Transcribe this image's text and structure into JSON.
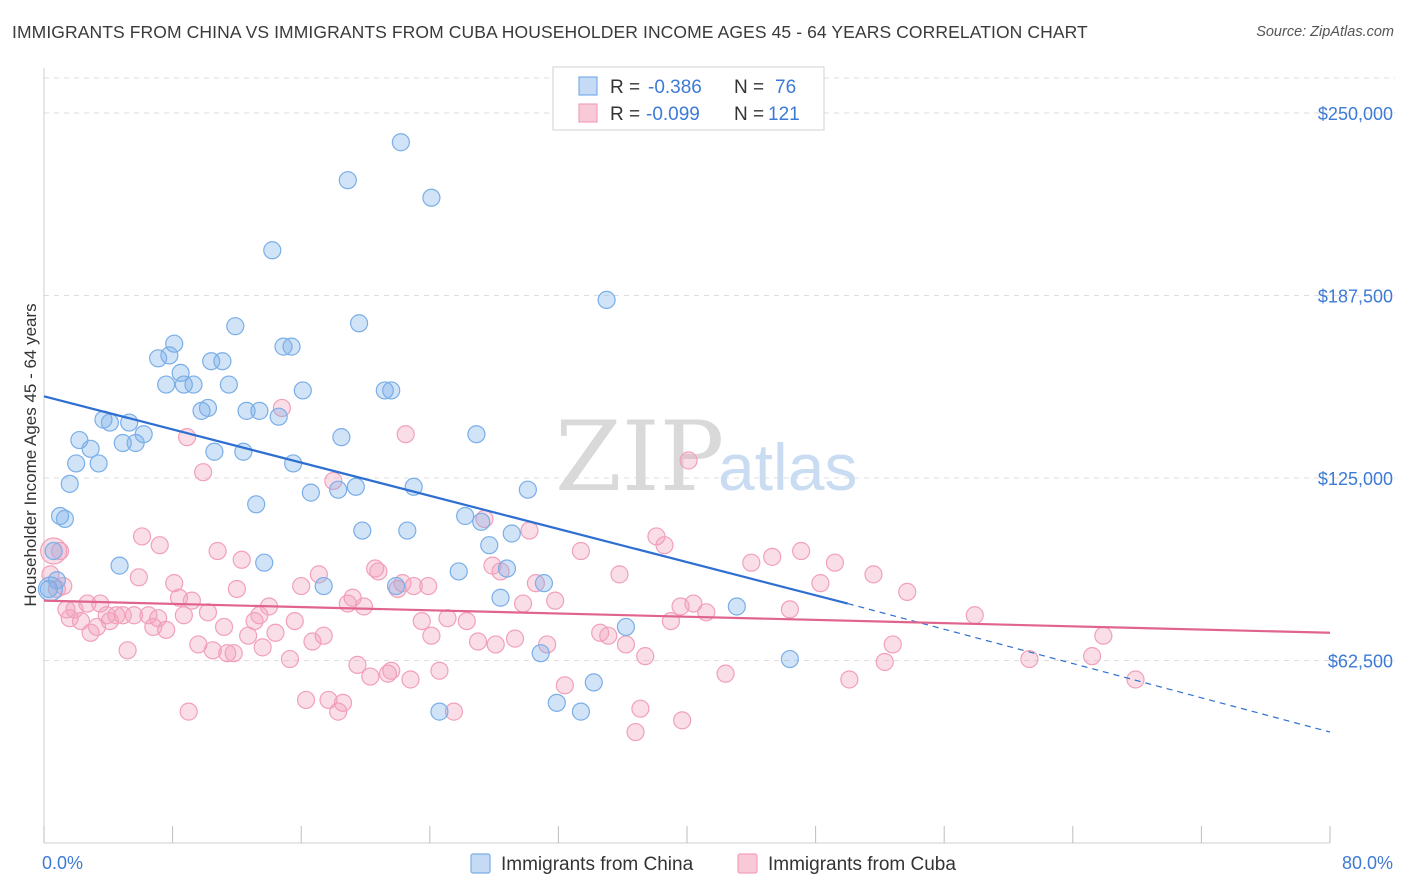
{
  "title": "IMMIGRANTS FROM CHINA VS IMMIGRANTS FROM CUBA HOUSEHOLDER INCOME AGES 45 - 64 YEARS CORRELATION CHART",
  "source": "Source: ZipAtlas.com",
  "watermark": {
    "zip": "ZIP",
    "atlas": "atlas"
  },
  "legend_box": {
    "rows": [
      {
        "r_label": "R =",
        "r_value": "-0.386",
        "n_label": "N =",
        "n_value": "76"
      },
      {
        "r_label": "R =",
        "r_value": "-0.099",
        "n_label": "N =",
        "n_value": "121"
      }
    ]
  },
  "chart_data": {
    "type": "scatter",
    "title": "IMMIGRANTS FROM CHINA VS IMMIGRANTS FROM CUBA HOUSEHOLDER INCOME AGES 45 - 64 YEARS CORRELATION CHART",
    "xlabel": "",
    "ylabel": "Householder Income Ages 45 - 64 years",
    "xlim": [
      0,
      80
    ],
    "ylim": [
      0,
      262000
    ],
    "x_tick_labels": [
      "0.0%",
      "80.0%"
    ],
    "y_ticks": [
      62500,
      125000,
      187500,
      250000
    ],
    "y_tick_labels": [
      "$62,500",
      "$125,000",
      "$187,500",
      "$250,000"
    ],
    "grid": "horizontal dashed",
    "legend_position": "bottom",
    "colors": {
      "china": "#7aaee8",
      "china_line": "#2e6fd1",
      "cuba": "#f2a0ba",
      "cuba_line": "#e0648e"
    },
    "series": [
      {
        "name": "Immigrants from China",
        "R": -0.386,
        "N": 76,
        "trend": {
          "x": [
            0,
            50
          ],
          "y": [
            153000,
            82000
          ],
          "dashed_to": [
            80,
            38000
          ]
        },
        "points": [
          [
            0.3,
            87000
          ],
          [
            0.6,
            100000
          ],
          [
            0.8,
            90000
          ],
          [
            1.0,
            112000
          ],
          [
            1.3,
            111000
          ],
          [
            1.6,
            123000
          ],
          [
            2.0,
            130000
          ],
          [
            2.2,
            138000
          ],
          [
            2.9,
            135000
          ],
          [
            3.4,
            130000
          ],
          [
            3.7,
            145000
          ],
          [
            4.1,
            144000
          ],
          [
            4.7,
            95000
          ],
          [
            4.9,
            137000
          ],
          [
            5.3,
            144000
          ],
          [
            5.7,
            137000
          ],
          [
            6.2,
            140000
          ],
          [
            7.1,
            166000
          ],
          [
            7.6,
            157000
          ],
          [
            7.8,
            167000
          ],
          [
            8.1,
            171000
          ],
          [
            8.5,
            161000
          ],
          [
            8.7,
            157000
          ],
          [
            9.3,
            157000
          ],
          [
            9.8,
            148000
          ],
          [
            10.2,
            149000
          ],
          [
            10.4,
            165000
          ],
          [
            10.6,
            134000
          ],
          [
            11.1,
            165000
          ],
          [
            11.5,
            157000
          ],
          [
            11.9,
            177000
          ],
          [
            12.4,
            134000
          ],
          [
            12.6,
            148000
          ],
          [
            13.2,
            116000
          ],
          [
            13.4,
            148000
          ],
          [
            13.7,
            96000
          ],
          [
            14.2,
            203000
          ],
          [
            14.6,
            146000
          ],
          [
            14.9,
            170000
          ],
          [
            15.5,
            130000
          ],
          [
            15.4,
            170000
          ],
          [
            16.1,
            155000
          ],
          [
            16.6,
            120000
          ],
          [
            17.4,
            88000
          ],
          [
            18.3,
            121000
          ],
          [
            18.5,
            139000
          ],
          [
            18.9,
            227000
          ],
          [
            19.4,
            122000
          ],
          [
            19.6,
            178000
          ],
          [
            19.8,
            107000
          ],
          [
            21.2,
            155000
          ],
          [
            21.6,
            155000
          ],
          [
            21.9,
            88000
          ],
          [
            22.2,
            240000
          ],
          [
            22.6,
            107000
          ],
          [
            23.0,
            122000
          ],
          [
            24.1,
            221000
          ],
          [
            24.6,
            45000
          ],
          [
            25.8,
            93000
          ],
          [
            26.2,
            112000
          ],
          [
            26.9,
            140000
          ],
          [
            27.2,
            110000
          ],
          [
            27.7,
            102000
          ],
          [
            28.4,
            84000
          ],
          [
            28.8,
            94000
          ],
          [
            29.1,
            106000
          ],
          [
            30.1,
            121000
          ],
          [
            30.9,
            65000
          ],
          [
            31.1,
            89000
          ],
          [
            31.9,
            48000
          ],
          [
            33.4,
            45000
          ],
          [
            34.2,
            55000
          ],
          [
            35.0,
            186000
          ],
          [
            36.2,
            74000
          ],
          [
            43.1,
            81000
          ],
          [
            46.4,
            63000
          ]
        ]
      },
      {
        "name": "Immigrants from Cuba",
        "R": -0.099,
        "N": 121,
        "trend": {
          "x": [
            0,
            80
          ],
          "y": [
            83000,
            72000
          ]
        },
        "points": [
          [
            0.4,
            92000
          ],
          [
            0.8,
            87000
          ],
          [
            1.0,
            100000
          ],
          [
            1.2,
            88000
          ],
          [
            1.4,
            80000
          ],
          [
            1.6,
            77000
          ],
          [
            1.9,
            80000
          ],
          [
            2.3,
            76000
          ],
          [
            2.7,
            82000
          ],
          [
            2.9,
            72000
          ],
          [
            3.3,
            74000
          ],
          [
            3.5,
            82000
          ],
          [
            3.9,
            78000
          ],
          [
            4.1,
            76000
          ],
          [
            4.5,
            78000
          ],
          [
            4.9,
            78000
          ],
          [
            5.2,
            66000
          ],
          [
            5.6,
            78000
          ],
          [
            5.9,
            91000
          ],
          [
            6.1,
            105000
          ],
          [
            6.5,
            78000
          ],
          [
            6.8,
            74000
          ],
          [
            7.1,
            77000
          ],
          [
            7.2,
            102000
          ],
          [
            7.6,
            73000
          ],
          [
            8.1,
            89000
          ],
          [
            8.4,
            84000
          ],
          [
            8.7,
            78000
          ],
          [
            8.9,
            139000
          ],
          [
            9.0,
            45000
          ],
          [
            9.2,
            83000
          ],
          [
            9.6,
            68000
          ],
          [
            9.9,
            127000
          ],
          [
            10.2,
            79000
          ],
          [
            10.5,
            66000
          ],
          [
            10.8,
            100000
          ],
          [
            11.2,
            74000
          ],
          [
            11.4,
            65000
          ],
          [
            11.8,
            65000
          ],
          [
            12.0,
            87000
          ],
          [
            12.3,
            97000
          ],
          [
            12.7,
            71000
          ],
          [
            13.1,
            76000
          ],
          [
            13.4,
            78000
          ],
          [
            13.6,
            67000
          ],
          [
            14.0,
            81000
          ],
          [
            14.4,
            72000
          ],
          [
            14.8,
            149000
          ],
          [
            15.3,
            63000
          ],
          [
            15.6,
            76000
          ],
          [
            16.0,
            88000
          ],
          [
            16.3,
            49000
          ],
          [
            16.7,
            69000
          ],
          [
            17.1,
            92000
          ],
          [
            17.4,
            71000
          ],
          [
            17.7,
            49000
          ],
          [
            18.0,
            124000
          ],
          [
            18.3,
            45000
          ],
          [
            18.6,
            48000
          ],
          [
            18.9,
            82000
          ],
          [
            19.2,
            84000
          ],
          [
            19.5,
            61000
          ],
          [
            19.9,
            81000
          ],
          [
            20.3,
            57000
          ],
          [
            20.6,
            94000
          ],
          [
            20.8,
            93000
          ],
          [
            21.4,
            58000
          ],
          [
            21.6,
            59000
          ],
          [
            22.0,
            87000
          ],
          [
            22.3,
            89000
          ],
          [
            22.5,
            140000
          ],
          [
            22.8,
            56000
          ],
          [
            23.0,
            88000
          ],
          [
            23.5,
            76000
          ],
          [
            23.9,
            88000
          ],
          [
            24.1,
            71000
          ],
          [
            24.6,
            59000
          ],
          [
            25.1,
            77000
          ],
          [
            25.5,
            45000
          ],
          [
            26.3,
            76000
          ],
          [
            27.0,
            69000
          ],
          [
            27.4,
            111000
          ],
          [
            27.9,
            95000
          ],
          [
            28.1,
            68000
          ],
          [
            28.4,
            93000
          ],
          [
            29.3,
            70000
          ],
          [
            29.8,
            82000
          ],
          [
            30.2,
            107000
          ],
          [
            30.6,
            89000
          ],
          [
            31.3,
            68000
          ],
          [
            31.8,
            83000
          ],
          [
            32.4,
            54000
          ],
          [
            33.4,
            100000
          ],
          [
            34.6,
            72000
          ],
          [
            35.1,
            71000
          ],
          [
            35.8,
            92000
          ],
          [
            36.2,
            68000
          ],
          [
            36.8,
            38000
          ],
          [
            37.1,
            46000
          ],
          [
            37.4,
            64000
          ],
          [
            38.1,
            105000
          ],
          [
            38.6,
            102000
          ],
          [
            39.0,
            76000
          ],
          [
            39.6,
            81000
          ],
          [
            39.7,
            42000
          ],
          [
            40.1,
            131000
          ],
          [
            40.4,
            82000
          ],
          [
            41.2,
            79000
          ],
          [
            42.4,
            58000
          ],
          [
            44.0,
            96000
          ],
          [
            45.3,
            98000
          ],
          [
            46.4,
            80000
          ],
          [
            47.1,
            100000
          ],
          [
            48.3,
            89000
          ],
          [
            49.2,
            96000
          ],
          [
            50.1,
            56000
          ],
          [
            51.6,
            92000
          ],
          [
            52.3,
            62000
          ],
          [
            52.8,
            68000
          ],
          [
            53.7,
            86000
          ],
          [
            57.9,
            78000
          ],
          [
            61.3,
            63000
          ],
          [
            65.2,
            64000
          ],
          [
            65.9,
            71000
          ],
          [
            67.9,
            56000
          ]
        ]
      }
    ]
  },
  "bottom_legend": [
    "Immigrants from China",
    "Immigrants from Cuba"
  ]
}
